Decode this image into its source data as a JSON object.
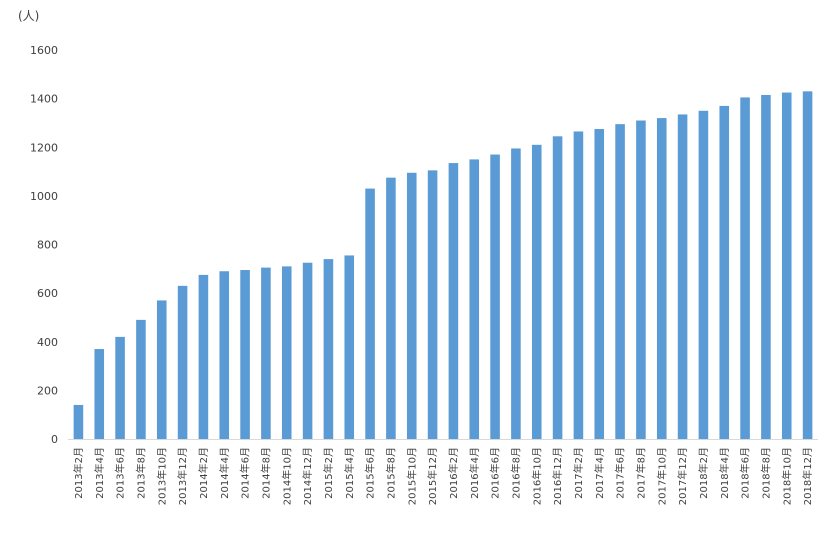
{
  "chart_data": {
    "type": "bar",
    "title": "",
    "xlabel": "",
    "ylabel": "",
    "unit_label": "(人)",
    "ylim": [
      0,
      1600
    ],
    "yticks": [
      0,
      200,
      400,
      600,
      800,
      1000,
      1200,
      1400,
      1600
    ],
    "grid": false,
    "legend": "none",
    "bar_color": "#5B9BD5",
    "axis_color": "#D9D9D9",
    "categories": [
      "2013年2月",
      "2013年4月",
      "2013年6月",
      "2013年8月",
      "2013年10月",
      "2013年12月",
      "2014年2月",
      "2014年4月",
      "2014年6月",
      "2014年8月",
      "2014年10月",
      "2014年12月",
      "2015年2月",
      "2015年4月",
      "2015年6月",
      "2015年8月",
      "2015年10月",
      "2015年12月",
      "2016年2月",
      "2016年4月",
      "2016年6月",
      "2016年8月",
      "2016年10月",
      "2016年12月",
      "2017年2月",
      "2017年4月",
      "2017年6月",
      "2017年8月",
      "2017年10月",
      "2017年12月",
      "2018年2月",
      "2018年4月",
      "2018年6月",
      "2018年8月",
      "2018年10月",
      "2018年12月"
    ],
    "values": [
      140,
      370,
      420,
      490,
      570,
      630,
      675,
      690,
      695,
      705,
      710,
      725,
      740,
      755,
      1030,
      1075,
      1095,
      1105,
      1135,
      1150,
      1170,
      1195,
      1210,
      1245,
      1265,
      1275,
      1295,
      1310,
      1320,
      1335,
      1350,
      1370,
      1405,
      1415,
      1425,
      1430
    ]
  }
}
